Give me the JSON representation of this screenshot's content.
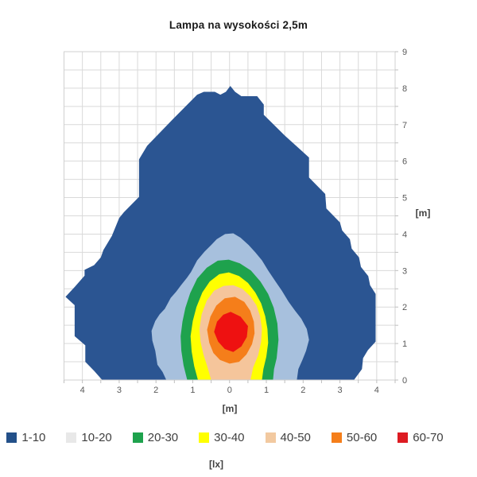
{
  "title": "Lampa na wysokości 2,5m",
  "chart_data": {
    "type": "heatmap",
    "subtype": "filled-contour-isolux-map",
    "title": "Lampa na wysokości 2,5m",
    "xlabel": "[m]",
    "ylabel": "[m]",
    "legend_unit": "[lx]",
    "legend_position": "bottom",
    "grid": true,
    "grid_step": 0.5,
    "xlim": [
      -4.5,
      4.5
    ],
    "ylim": [
      0,
      9
    ],
    "x_tick_values": [
      -4,
      -3,
      -2,
      -1,
      0,
      1,
      2,
      3,
      4
    ],
    "x_tick_labels": [
      "4",
      "3",
      "2",
      "1",
      "0",
      "1",
      "2",
      "3",
      "4"
    ],
    "y_tick_values": [
      0,
      1,
      2,
      3,
      4,
      5,
      6,
      7,
      8,
      9
    ],
    "y_tick_labels": [
      "0",
      "1",
      "2",
      "3",
      "4",
      "5",
      "6",
      "7",
      "8",
      "9"
    ],
    "colors": {
      "plot_background": "#ffffff",
      "grid": "#d9d9d9",
      "border": "#d0d0d0",
      "tick": "#bfbfbf",
      "tick_label": "#595959",
      "axis_title": "#404040",
      "title_text": "#1a1a1a",
      "legend_text": "#3f3f3f"
    },
    "bands": [
      {
        "label": "1-10",
        "swatch": "#235089",
        "fill": "#2b5592",
        "points": [
          [
            -3.46,
            0
          ],
          [
            -3.68,
            0.25
          ],
          [
            -3.92,
            0.5
          ],
          [
            -3.92,
            0.95
          ],
          [
            -4.21,
            1.2
          ],
          [
            -4.21,
            2.05
          ],
          [
            -4.46,
            2.28
          ],
          [
            -4.21,
            2.55
          ],
          [
            -3.94,
            2.86
          ],
          [
            -3.94,
            3.02
          ],
          [
            -3.68,
            3.15
          ],
          [
            -3.5,
            3.36
          ],
          [
            -3.43,
            3.56
          ],
          [
            -3.2,
            3.95
          ],
          [
            -3.0,
            4.44
          ],
          [
            -2.87,
            4.6
          ],
          [
            -2.46,
            5.02
          ],
          [
            -2.46,
            6.05
          ],
          [
            -2.24,
            6.42
          ],
          [
            -1.55,
            7.14
          ],
          [
            -0.88,
            7.82
          ],
          [
            -0.7,
            7.9
          ],
          [
            -0.4,
            7.9
          ],
          [
            -0.25,
            7.82
          ],
          [
            -0.1,
            7.9
          ],
          [
            0.02,
            8.06
          ],
          [
            0.15,
            7.9
          ],
          [
            0.32,
            7.78
          ],
          [
            0.75,
            7.78
          ],
          [
            0.93,
            7.55
          ],
          [
            0.93,
            7.27
          ],
          [
            1.5,
            6.7
          ],
          [
            2.16,
            6.1
          ],
          [
            2.16,
            5.55
          ],
          [
            2.6,
            5.1
          ],
          [
            2.63,
            4.7
          ],
          [
            3.0,
            4.32
          ],
          [
            3.06,
            4.1
          ],
          [
            3.27,
            3.86
          ],
          [
            3.32,
            3.6
          ],
          [
            3.52,
            3.36
          ],
          [
            3.57,
            3.1
          ],
          [
            3.77,
            2.85
          ],
          [
            3.82,
            2.6
          ],
          [
            3.97,
            2.36
          ],
          [
            3.97,
            1.05
          ],
          [
            3.76,
            0.82
          ],
          [
            3.63,
            0.6
          ],
          [
            3.6,
            0.3
          ],
          [
            3.38,
            0
          ]
        ]
      },
      {
        "label": "10-20",
        "swatch": "#e8e8e8",
        "fill": "#a7c0dd",
        "points": [
          [
            -1.72,
            0
          ],
          [
            -1.82,
            0.22
          ],
          [
            -1.96,
            0.42
          ],
          [
            -2.02,
            0.8
          ],
          [
            -2.1,
            1.08
          ],
          [
            -2.12,
            1.35
          ],
          [
            -2.02,
            1.62
          ],
          [
            -1.9,
            1.8
          ],
          [
            -1.76,
            1.95
          ],
          [
            -1.6,
            2.25
          ],
          [
            -1.45,
            2.42
          ],
          [
            -1.32,
            2.6
          ],
          [
            -1.16,
            2.8
          ],
          [
            -1.05,
            2.96
          ],
          [
            -0.88,
            3.28
          ],
          [
            -0.68,
            3.52
          ],
          [
            -0.5,
            3.7
          ],
          [
            -0.35,
            3.86
          ],
          [
            -0.12,
            4.0
          ],
          [
            0.1,
            4.02
          ],
          [
            0.3,
            3.9
          ],
          [
            0.52,
            3.7
          ],
          [
            0.7,
            3.5
          ],
          [
            0.88,
            3.28
          ],
          [
            1.05,
            3.0
          ],
          [
            1.25,
            2.7
          ],
          [
            1.42,
            2.45
          ],
          [
            1.6,
            2.15
          ],
          [
            1.78,
            1.9
          ],
          [
            1.95,
            1.68
          ],
          [
            2.1,
            1.4
          ],
          [
            2.16,
            1.1
          ],
          [
            2.08,
            0.8
          ],
          [
            1.98,
            0.55
          ],
          [
            1.87,
            0.3
          ],
          [
            1.83,
            0
          ]
        ]
      },
      {
        "label": "20-30",
        "swatch": "#1ea24d",
        "fill": "#1ea24d",
        "points": [
          [
            -1.15,
            0
          ],
          [
            -1.25,
            0.4
          ],
          [
            -1.31,
            0.8
          ],
          [
            -1.33,
            1.2
          ],
          [
            -1.28,
            1.6
          ],
          [
            -1.2,
            1.98
          ],
          [
            -1.07,
            2.38
          ],
          [
            -0.88,
            2.78
          ],
          [
            -0.62,
            3.08
          ],
          [
            -0.32,
            3.27
          ],
          [
            -0.02,
            3.3
          ],
          [
            0.28,
            3.2
          ],
          [
            0.58,
            3.0
          ],
          [
            0.84,
            2.7
          ],
          [
            1.05,
            2.36
          ],
          [
            1.2,
            1.98
          ],
          [
            1.3,
            1.55
          ],
          [
            1.33,
            1.1
          ],
          [
            1.28,
            0.6
          ],
          [
            1.21,
            0.3
          ],
          [
            1.18,
            0
          ]
        ]
      },
      {
        "label": "30-40",
        "swatch": "#ffff00",
        "fill": "#ffff00",
        "points": [
          [
            -0.86,
            0
          ],
          [
            -0.96,
            0.38
          ],
          [
            -1.03,
            0.78
          ],
          [
            -1.06,
            1.2
          ],
          [
            -1.0,
            1.62
          ],
          [
            -0.9,
            2.0
          ],
          [
            -0.74,
            2.4
          ],
          [
            -0.54,
            2.7
          ],
          [
            -0.28,
            2.9
          ],
          [
            -0.02,
            2.95
          ],
          [
            0.26,
            2.85
          ],
          [
            0.5,
            2.66
          ],
          [
            0.7,
            2.4
          ],
          [
            0.86,
            2.1
          ],
          [
            0.97,
            1.75
          ],
          [
            1.03,
            1.4
          ],
          [
            1.05,
            1.02
          ],
          [
            1.0,
            0.64
          ],
          [
            0.92,
            0.3
          ],
          [
            0.88,
            0
          ]
        ]
      },
      {
        "label": "40-50",
        "swatch": "#f2c9a0",
        "fill": "#f5c59b",
        "points": [
          [
            -0.5,
            0
          ],
          [
            -0.6,
            0.35
          ],
          [
            -0.71,
            0.7
          ],
          [
            -0.79,
            1.05
          ],
          [
            -0.82,
            1.4
          ],
          [
            -0.76,
            1.8
          ],
          [
            -0.62,
            2.18
          ],
          [
            -0.42,
            2.45
          ],
          [
            -0.16,
            2.58
          ],
          [
            0.1,
            2.6
          ],
          [
            0.35,
            2.5
          ],
          [
            0.56,
            2.3
          ],
          [
            0.73,
            2.05
          ],
          [
            0.83,
            1.75
          ],
          [
            0.88,
            1.4
          ],
          [
            0.86,
            1.05
          ],
          [
            0.78,
            0.68
          ],
          [
            0.64,
            0.34
          ],
          [
            0.57,
            0
          ]
        ]
      },
      {
        "label": "50-60",
        "swatch": "#f57e1a",
        "fill": "#f57e1a",
        "points": [
          [
            -0.26,
            0.55
          ],
          [
            -0.44,
            0.74
          ],
          [
            -0.55,
            1.02
          ],
          [
            -0.61,
            1.38
          ],
          [
            -0.52,
            1.74
          ],
          [
            -0.36,
            2.04
          ],
          [
            -0.13,
            2.24
          ],
          [
            0.15,
            2.28
          ],
          [
            0.4,
            2.14
          ],
          [
            0.56,
            1.9
          ],
          [
            0.66,
            1.6
          ],
          [
            0.68,
            1.28
          ],
          [
            0.61,
            0.98
          ],
          [
            0.46,
            0.7
          ],
          [
            0.26,
            0.5
          ],
          [
            0.0,
            0.45
          ]
        ]
      },
      {
        "label": "60-70",
        "swatch": "#dd1b22",
        "fill": "#ee1111",
        "points": [
          [
            0.03,
            1.87
          ],
          [
            0.3,
            1.74
          ],
          [
            0.5,
            1.48
          ],
          [
            0.47,
            1.18
          ],
          [
            0.32,
            0.92
          ],
          [
            0.1,
            0.77
          ],
          [
            -0.13,
            0.85
          ],
          [
            -0.31,
            1.05
          ],
          [
            -0.42,
            1.32
          ],
          [
            -0.34,
            1.6
          ],
          [
            -0.17,
            1.79
          ]
        ]
      }
    ]
  }
}
